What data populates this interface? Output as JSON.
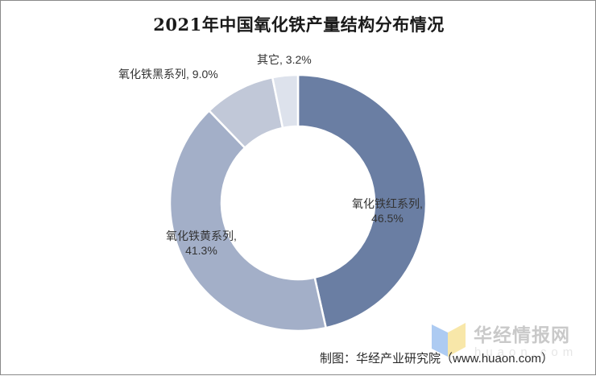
{
  "chart_data": {
    "type": "pie",
    "subtype": "donut",
    "title": "2021年中国氧化铁产量结构分布情况",
    "categories": [
      "氧化铁红系列",
      "氧化铁黄系列",
      "氧化铁黑系列",
      "其它"
    ],
    "values": [
      46.5,
      41.3,
      9.0,
      3.2
    ],
    "unit": "%",
    "colors": [
      "#6a7ea3",
      "#a3afc8",
      "#c1c8d8",
      "#dde2ec"
    ],
    "data_labels": [
      {
        "name": "氧化铁红系列,",
        "value": "46.5%"
      },
      {
        "name": "氧化铁黄系列,",
        "value": "41.3%"
      },
      {
        "name": "氧化铁黑系列, 9.0%",
        "value": ""
      },
      {
        "name": "其它, 3.2%",
        "value": ""
      }
    ],
    "legend": "none",
    "start_angle": "12 o'clock, clockwise"
  },
  "footer": {
    "source": "制图：华经产业研究院（www.huaon.com）",
    "watermark_text": "华经情报网",
    "watermark_url": "huaon.com"
  }
}
